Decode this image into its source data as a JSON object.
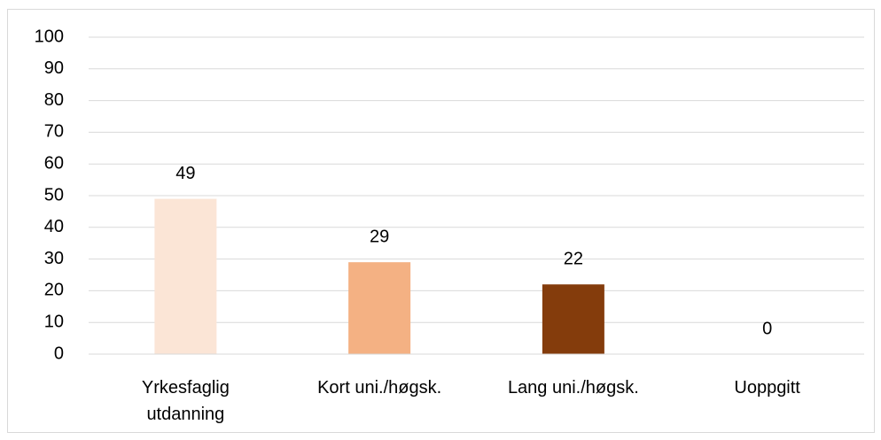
{
  "chart_data": {
    "type": "bar",
    "categories": [
      "Yrkesfaglig utdanning",
      "Kort uni./høgsk.",
      "Lang uni./høgsk.",
      "Uoppgitt"
    ],
    "values": [
      49,
      29,
      22,
      0
    ],
    "colors": [
      "#fbe5d6",
      "#f4b183",
      "#843c0c",
      "#843c0c"
    ],
    "ylim": [
      0,
      100
    ],
    "yticks": [
      0,
      10,
      20,
      30,
      40,
      50,
      60,
      70,
      80,
      90,
      100
    ],
    "grid": true
  }
}
